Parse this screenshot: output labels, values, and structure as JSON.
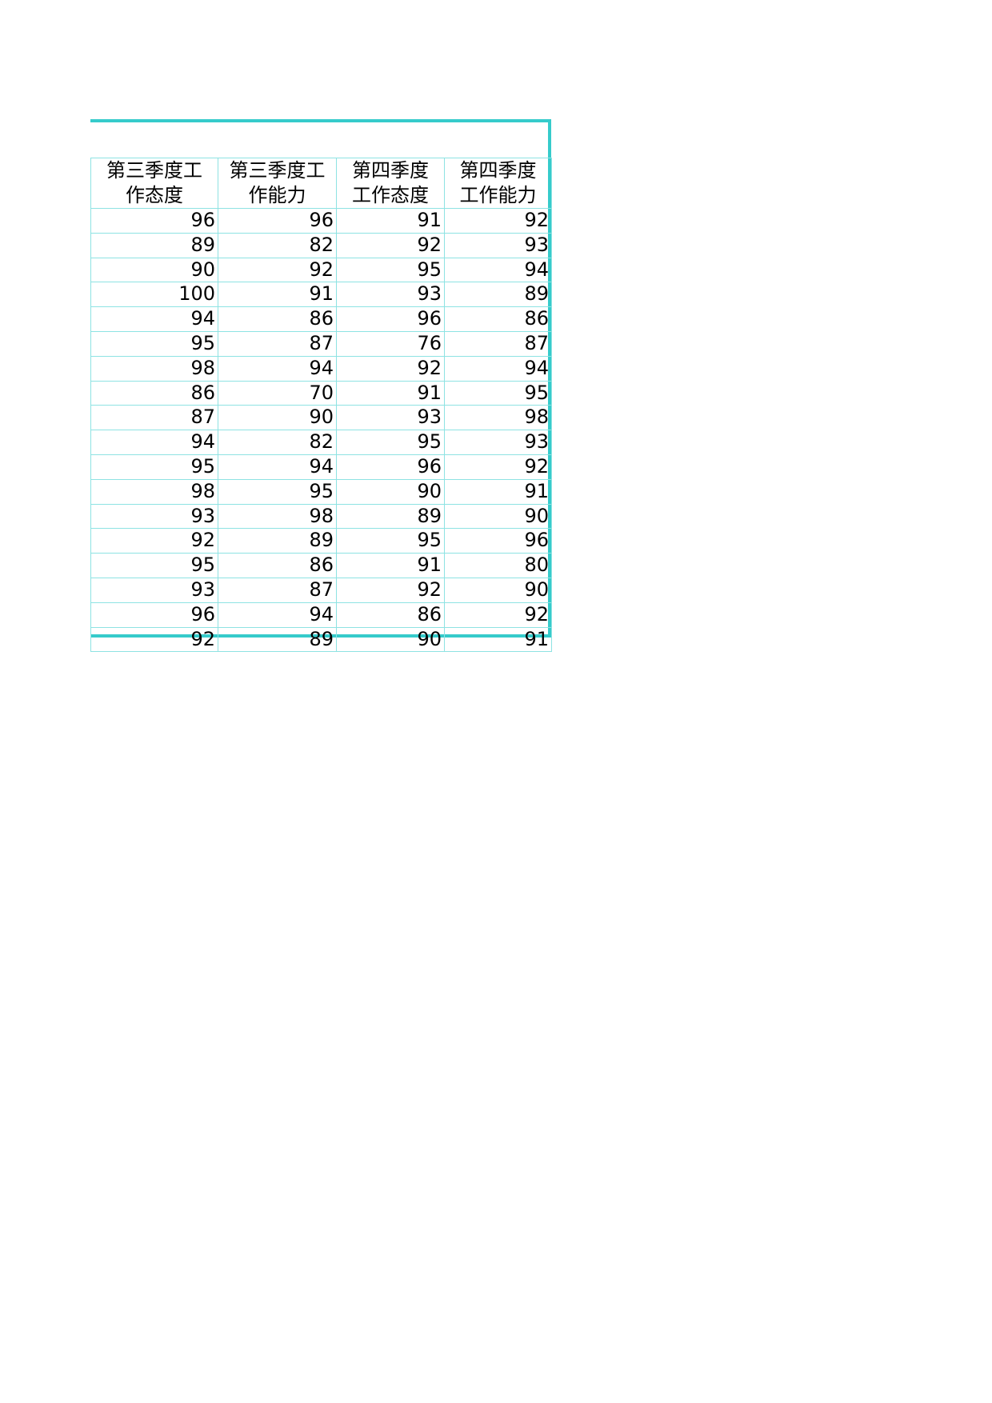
{
  "table": {
    "headers": [
      "第三季度工作态度",
      "第三季度工作能力",
      "第四季度工作态度",
      "第四季度工作能力"
    ],
    "rows": [
      [
        "96",
        "96",
        "91",
        "92"
      ],
      [
        "89",
        "82",
        "92",
        "93"
      ],
      [
        "90",
        "92",
        "95",
        "94"
      ],
      [
        "100",
        "91",
        "93",
        "89"
      ],
      [
        "94",
        "86",
        "96",
        "86"
      ],
      [
        "95",
        "87",
        "76",
        "87"
      ],
      [
        "98",
        "94",
        "92",
        "94"
      ],
      [
        "86",
        "70",
        "91",
        "95"
      ],
      [
        "87",
        "90",
        "93",
        "98"
      ],
      [
        "94",
        "82",
        "95",
        "93"
      ],
      [
        "95",
        "94",
        "96",
        "92"
      ],
      [
        "98",
        "95",
        "90",
        "91"
      ],
      [
        "93",
        "98",
        "89",
        "90"
      ],
      [
        "92",
        "89",
        "95",
        "96"
      ],
      [
        "95",
        "86",
        "91",
        "80"
      ],
      [
        "93",
        "87",
        "92",
        "90"
      ],
      [
        "96",
        "94",
        "86",
        "92"
      ],
      [
        "92",
        "89",
        "90",
        "91"
      ]
    ]
  },
  "colors": {
    "accent_border": "#36cbcb",
    "grid": "#8ee3e3"
  }
}
